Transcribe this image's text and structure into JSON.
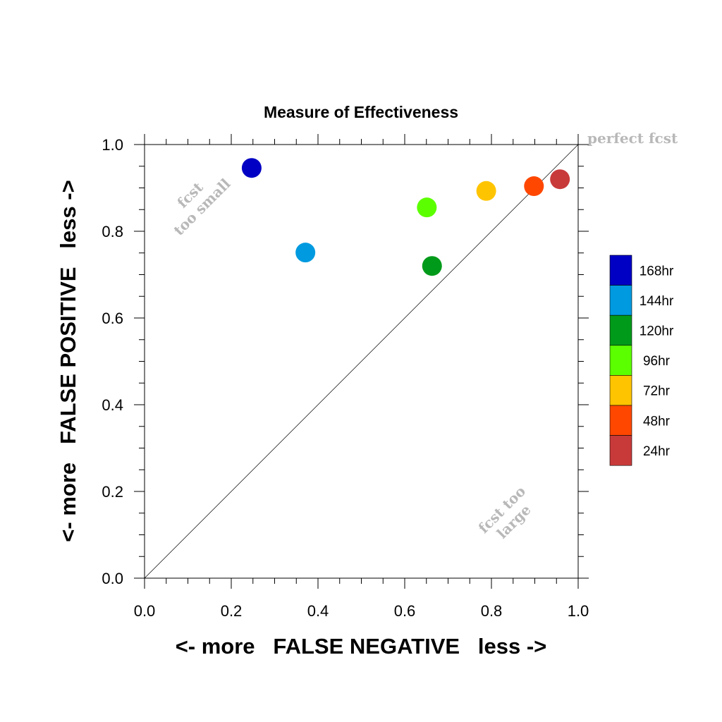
{
  "chart_data": {
    "type": "scatter",
    "title": "Measure of Effectiveness",
    "xlabel": "<- more   FALSE NEGATIVE   less ->",
    "ylabel": "<- more   FALSE POSITIVE   less ->",
    "xlim": [
      0,
      1
    ],
    "ylim": [
      0,
      1
    ],
    "xticks": [
      "0.0",
      "0.2",
      "0.4",
      "0.6",
      "0.8",
      "1.0"
    ],
    "yticks": [
      "0.0",
      "0.2",
      "0.4",
      "0.6",
      "0.8",
      "1.0"
    ],
    "grid": false,
    "diagonal_line": true,
    "legend_position": "right",
    "annotations": {
      "perfect": "perfect fcst",
      "small_line1": "fcst",
      "small_line2": "too small",
      "large_line1": "fcst too",
      "large_line2": "large"
    },
    "series": [
      {
        "name": "168hr",
        "color": "#0000c4",
        "x": 0.247,
        "y": 0.946
      },
      {
        "name": "144hr",
        "color": "#009ae0",
        "x": 0.371,
        "y": 0.751
      },
      {
        "name": "120hr",
        "color": "#009a1a",
        "x": 0.663,
        "y": 0.72
      },
      {
        "name": "96hr",
        "color": "#5cff00",
        "x": 0.651,
        "y": 0.855
      },
      {
        "name": "72hr",
        "color": "#ffc400",
        "x": 0.788,
        "y": 0.893
      },
      {
        "name": "48hr",
        "color": "#ff4700",
        "x": 0.898,
        "y": 0.904
      },
      {
        "name": "24hr",
        "color": "#c83a3a",
        "x": 0.958,
        "y": 0.92
      }
    ]
  }
}
